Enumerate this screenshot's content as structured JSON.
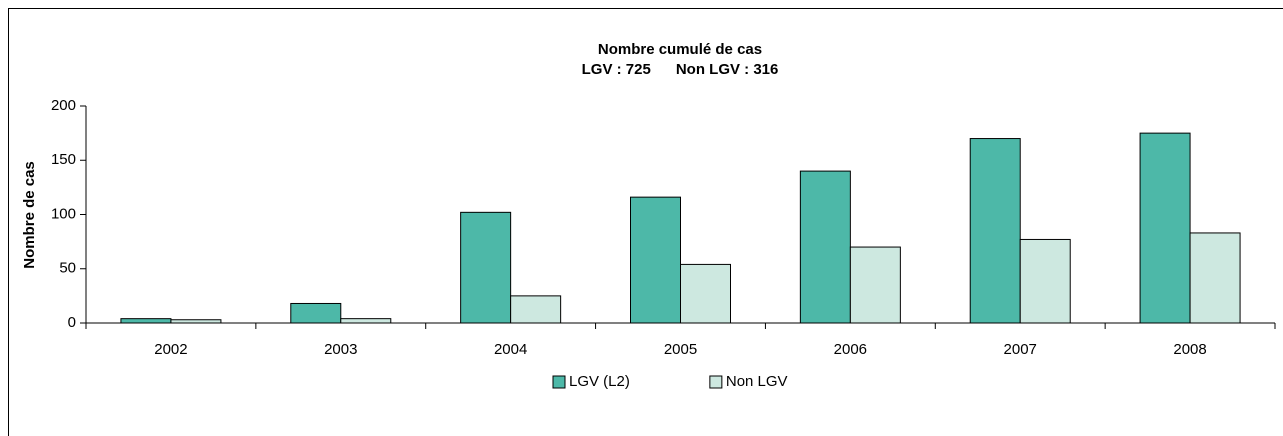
{
  "chart_data": {
    "type": "bar",
    "title": "Nombre cumulé de cas",
    "subtitle": "LGV : 725      Non LGV : 316",
    "y_label": "Nombre de cas",
    "categories": [
      "2002",
      "2003",
      "2004",
      "2005",
      "2006",
      "2007",
      "2008"
    ],
    "series": [
      {
        "name": "LGV (L2)",
        "color": "#4db8a8",
        "values": [
          4,
          18,
          102,
          116,
          140,
          170,
          175
        ]
      },
      {
        "name": "Non LGV",
        "color": "#cde8e0",
        "values": [
          3,
          4,
          25,
          54,
          70,
          77,
          83
        ]
      }
    ],
    "ylim": [
      0,
      200
    ],
    "yticks": [
      0,
      50,
      100,
      150,
      200
    ],
    "legend": "bottom"
  }
}
